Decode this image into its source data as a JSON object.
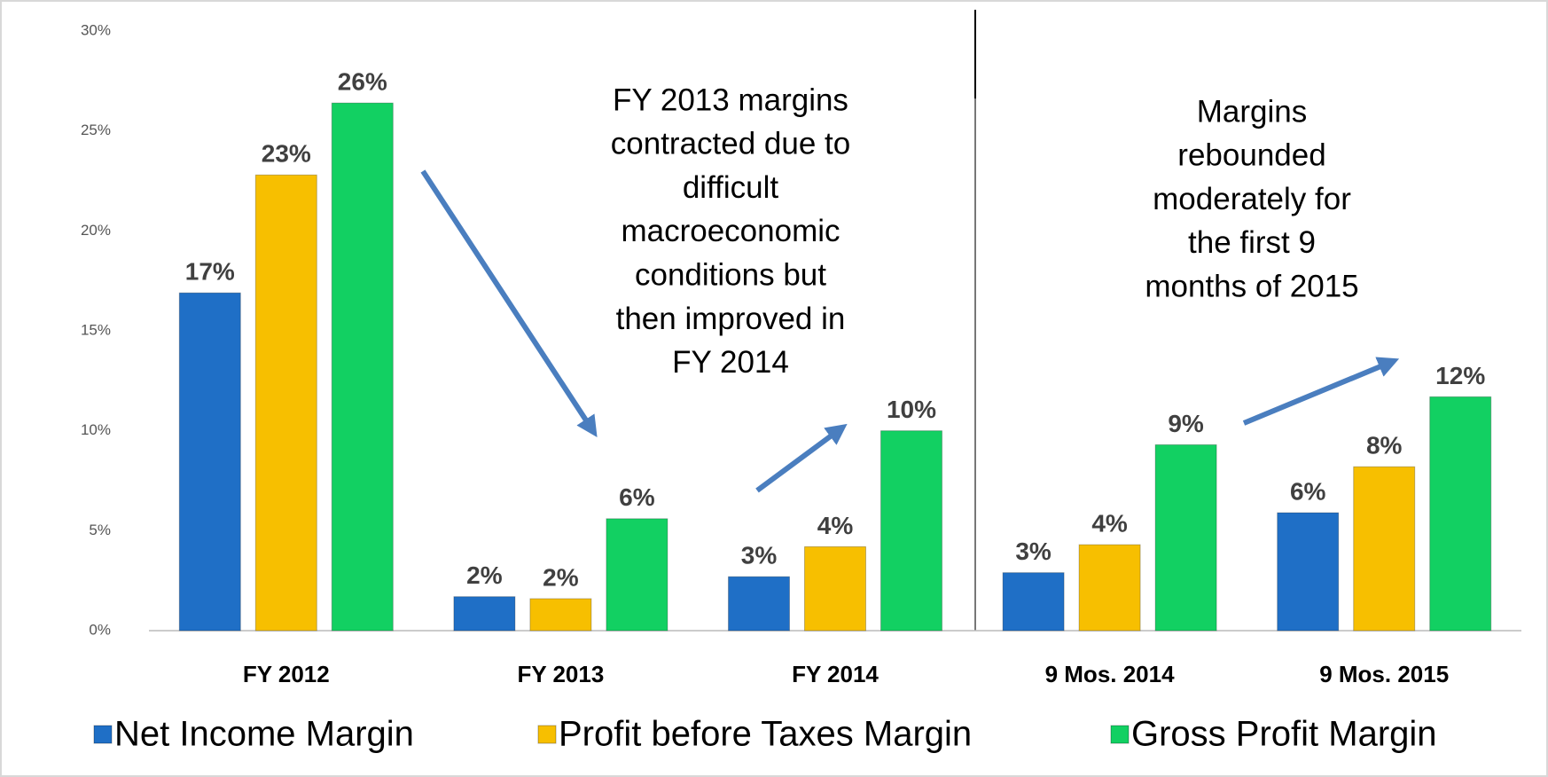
{
  "chart_data": {
    "type": "bar",
    "categories": [
      "FY 2012",
      "FY 2013",
      "FY 2014",
      "9 Mos. 2014",
      "9 Mos. 2015"
    ],
    "series": [
      {
        "name": "Net Income Margin",
        "color": "#1f6fc6",
        "values": [
          16.9,
          1.7,
          2.7,
          2.9,
          5.9
        ],
        "value_labels": [
          "17%",
          "2%",
          "3%",
          "3%",
          "6%"
        ]
      },
      {
        "name": "Profit before Taxes Margin",
        "color": "#f7bf00",
        "values": [
          22.8,
          1.6,
          4.2,
          4.3,
          8.2
        ],
        "value_labels": [
          "23%",
          "2%",
          "4%",
          "4%",
          "8%"
        ]
      },
      {
        "name": "Gross Profit Margin",
        "color": "#12d062",
        "values": [
          26.4,
          5.6,
          10.0,
          9.3,
          11.7
        ],
        "value_labels": [
          "26%",
          "6%",
          "10%",
          "9%",
          "12%"
        ]
      }
    ],
    "ylim": [
      0,
      30
    ],
    "yticks": [
      {
        "value": 0,
        "label": "0%"
      },
      {
        "value": 5,
        "label": "5%"
      },
      {
        "value": 10,
        "label": "10%"
      },
      {
        "value": 15,
        "label": "15%"
      },
      {
        "value": 20,
        "label": "20%"
      },
      {
        "value": 25,
        "label": "25%"
      },
      {
        "value": 30,
        "label": "30%"
      }
    ],
    "annotations": [
      [
        "FY 2013 margins",
        "contracted due to",
        "difficult",
        "macroeconomic",
        "conditions but",
        "then improved in",
        "FY 2014"
      ],
      [
        "Margins",
        "rebounded",
        "moderately for",
        "the first 9",
        "months of 2015"
      ]
    ],
    "legend": "bottom"
  }
}
